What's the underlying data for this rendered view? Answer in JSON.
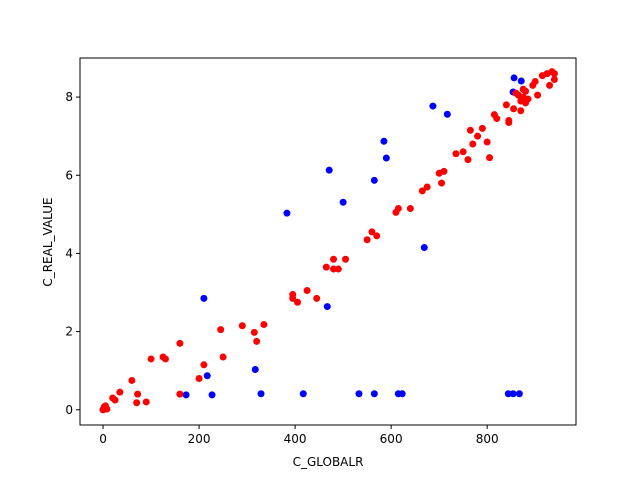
{
  "chart_data": {
    "type": "scatter",
    "xlabel": "C_GLOBALR",
    "ylabel": "C_REAL_VALUE",
    "xlim": [
      -48,
      985
    ],
    "ylim": [
      -0.39,
      9.0
    ],
    "xticks": [
      0,
      200,
      400,
      600,
      800
    ],
    "yticks": [
      0,
      2,
      4,
      6,
      8
    ],
    "series": [
      {
        "color": "#0000ff",
        "x": [
          856,
          871,
          854,
          687,
          717,
          585,
          590,
          471,
          565,
          383,
          500,
          669,
          210,
          467,
          317,
          217,
          173,
          227,
          329,
          417,
          533,
          565,
          615,
          623,
          844,
          854,
          867,
          0
        ],
        "y": [
          8.49,
          8.41,
          8.13,
          7.77,
          7.56,
          6.87,
          6.44,
          6.13,
          5.87,
          5.03,
          5.31,
          4.15,
          2.85,
          2.64,
          1.03,
          0.87,
          0.38,
          0.38,
          0.41,
          0.41,
          0.41,
          0.41,
          0.41,
          0.41,
          0.41,
          0.41,
          0.41,
          0
        ]
      },
      {
        "color": "#ff0000",
        "x": [
          0,
          2,
          5,
          8,
          3,
          20,
          25,
          35,
          60,
          70,
          72,
          90,
          100,
          125,
          130,
          160,
          160,
          200,
          210,
          245,
          250,
          290,
          315,
          320,
          335,
          395,
          395,
          405,
          425,
          445,
          465,
          480,
          480,
          490,
          505,
          550,
          560,
          570,
          610,
          615,
          640,
          665,
          675,
          700,
          705,
          710,
          735,
          750,
          760,
          765,
          770,
          780,
          790,
          800,
          805,
          815,
          820,
          840,
          845,
          845,
          855,
          860,
          865,
          870,
          870,
          875,
          875,
          880,
          880,
          885,
          895,
          900,
          905,
          915,
          925,
          930,
          935,
          940,
          940
        ],
        "y": [
          0,
          0.05,
          0.1,
          0.02,
          0.08,
          0.3,
          0.25,
          0.45,
          0.75,
          0.18,
          0.4,
          0.2,
          1.3,
          1.35,
          1.3,
          0.4,
          1.7,
          0.8,
          1.15,
          2.05,
          1.35,
          2.15,
          1.98,
          1.75,
          2.18,
          2.85,
          2.95,
          2.75,
          3.05,
          2.85,
          3.65,
          3.85,
          3.6,
          3.6,
          3.85,
          4.35,
          4.55,
          4.45,
          5.05,
          5.15,
          5.15,
          5.6,
          5.7,
          6.05,
          5.8,
          6.1,
          6.55,
          6.6,
          6.4,
          7.15,
          6.8,
          7.0,
          7.2,
          6.85,
          6.45,
          7.55,
          7.45,
          7.8,
          7.4,
          7.35,
          7.7,
          8.1,
          8.05,
          7.65,
          7.9,
          8.2,
          8.0,
          8.15,
          7.85,
          7.95,
          8.3,
          8.4,
          8.05,
          8.55,
          8.6,
          8.3,
          8.65,
          8.6,
          8.45
        ]
      }
    ]
  }
}
